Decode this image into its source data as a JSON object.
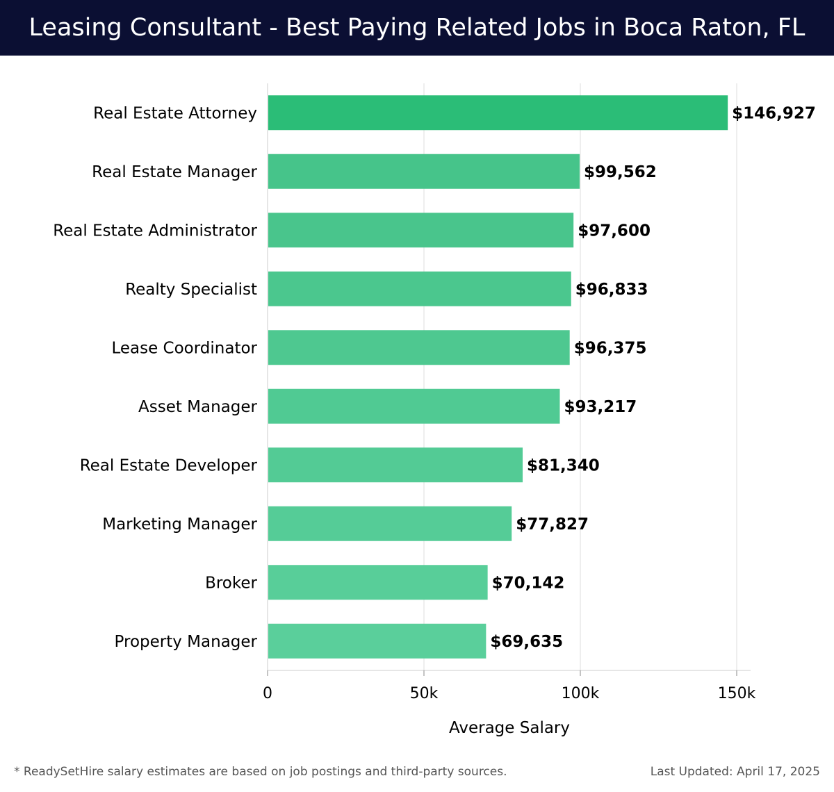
{
  "header": {
    "title": "Leasing Consultant - Best Paying Related Jobs in Boca Raton, FL"
  },
  "chart_data": {
    "type": "bar",
    "orientation": "horizontal",
    "title": "Leasing Consultant - Best Paying Related Jobs in Boca Raton, FL",
    "xlabel": "Average Salary",
    "ylabel": "",
    "xlim": [
      0,
      155000
    ],
    "xticks": [
      0,
      50000,
      100000,
      150000
    ],
    "xtick_labels": [
      "0",
      "50k",
      "100k",
      "150k"
    ],
    "grid": "vertical",
    "categories": [
      "Real Estate Attorney",
      "Real Estate Manager",
      "Real Estate Administrator",
      "Realty Specialist",
      "Lease Coordinator",
      "Asset Manager",
      "Real Estate Developer",
      "Marketing Manager",
      "Broker",
      "Property Manager"
    ],
    "values": [
      146927,
      99562,
      97600,
      96833,
      96375,
      93217,
      81340,
      77827,
      70142,
      69635
    ],
    "value_labels": [
      "$146,927",
      "$99,562",
      "$97,600",
      "$96,833",
      "$96,375",
      "$93,217",
      "$81,340",
      "$77,827",
      "$70,142",
      "$69,635"
    ],
    "colors": {
      "top_bar": "#2bbd77",
      "bar_gradient_start": "#46c48a",
      "bar_gradient_end": "#5acf9b",
      "grid": "#dddddd"
    }
  },
  "footer": {
    "note": "* ReadySetHire salary estimates are based on job postings and third-party sources.",
    "updated": "Last Updated: April 17, 2025"
  }
}
